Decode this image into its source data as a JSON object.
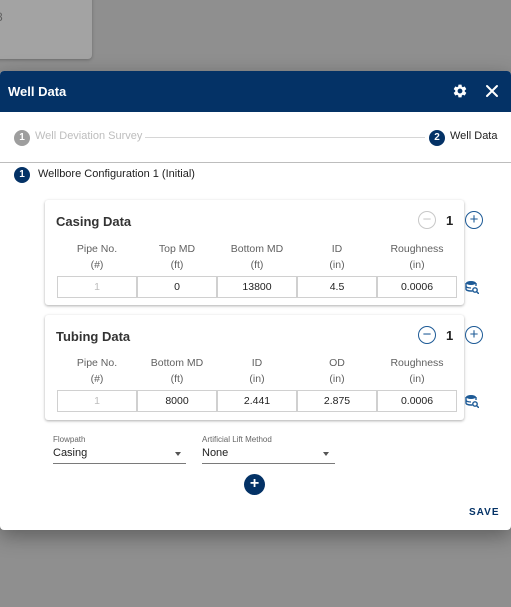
{
  "background": {
    "fragment": "8"
  },
  "dialog": {
    "title": "Well Data",
    "icons": {
      "settings": "gear-icon",
      "close": "close-icon"
    }
  },
  "stepper": {
    "steps": [
      {
        "number": "1",
        "label": "Well Deviation Survey",
        "state": "inactive"
      },
      {
        "number": "2",
        "label": "Well Data",
        "state": "active"
      }
    ]
  },
  "configuration": {
    "number": "1",
    "label": "Wellbore Configuration 1 (Initial)"
  },
  "casing": {
    "title": "Casing Data",
    "count": "1",
    "headers": [
      {
        "name": "Pipe No.",
        "unit": "(#)"
      },
      {
        "name": "Top MD",
        "unit": "(ft)"
      },
      {
        "name": "Bottom MD",
        "unit": "(ft)"
      },
      {
        "name": "ID",
        "unit": "(in)"
      },
      {
        "name": "Roughness",
        "unit": "(in)"
      }
    ],
    "row": [
      "1",
      "0",
      "13800",
      "4.5",
      "0.0006"
    ]
  },
  "tubing": {
    "title": "Tubing Data",
    "count": "1",
    "headers": [
      {
        "name": "Pipe No.",
        "unit": "(#)"
      },
      {
        "name": "Bottom MD",
        "unit": "(ft)"
      },
      {
        "name": "ID",
        "unit": "(in)"
      },
      {
        "name": "OD",
        "unit": "(in)"
      },
      {
        "name": "Roughness",
        "unit": "(in)"
      }
    ],
    "row": [
      "1",
      "8000",
      "2.441",
      "2.875",
      "0.0006"
    ]
  },
  "flowpath": {
    "label": "Flowpath",
    "value": "Casing"
  },
  "artificial_lift": {
    "label": "Artificial Lift Method",
    "value": "None"
  },
  "actions": {
    "add": "+",
    "save": "SAVE"
  },
  "colors": {
    "primary": "#043266",
    "accent": "#1d5a96",
    "overlay": "#8f8f8f"
  }
}
